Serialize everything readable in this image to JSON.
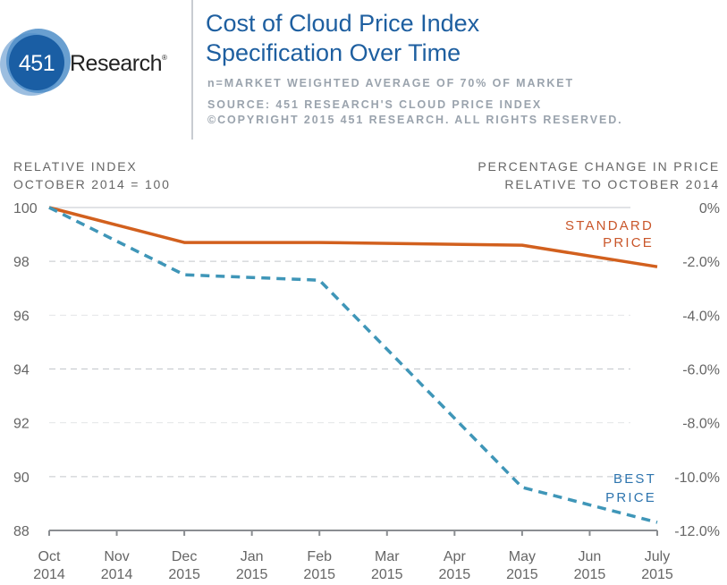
{
  "header": {
    "logo": {
      "number": "451",
      "word": "Research",
      "mark": "®"
    },
    "title_lines": [
      "Cost of Cloud Price Index",
      "Specification Over Time"
    ],
    "notes": [
      "n=MARKET WEIGHTED AVERAGE OF 70% OF MARKET",
      "SOURCE: 451 RESEARCH'S CLOUD PRICE INDEX",
      "©COPYRIGHT 2015 451 RESEARCH. ALL RIGHTS RESERVED."
    ]
  },
  "colors": {
    "standard": "#d2601e",
    "best": "#3f96b8",
    "title": "#1e5fa0",
    "standard_label": "#c9562a",
    "best_label": "#2d74ae"
  },
  "chart_data": {
    "type": "line",
    "title": "Cost of Cloud Price Index Specification Over Time",
    "ylabel_left": [
      "RELATIVE INDEX",
      "OCTOBER 2014 = 100"
    ],
    "ylabel_right": [
      "PERCENTAGE CHANGE IN PRICE",
      "RELATIVE TO OCTOBER 2014"
    ],
    "categories": [
      [
        "Oct",
        "2014"
      ],
      [
        "Nov",
        "2014"
      ],
      [
        "Dec",
        "2015"
      ],
      [
        "Jan",
        "2015"
      ],
      [
        "Feb",
        "2015"
      ],
      [
        "Mar",
        "2015"
      ],
      [
        "Apr",
        "2015"
      ],
      [
        "May",
        "2015"
      ],
      [
        "Jun",
        "2015"
      ],
      [
        "July",
        "2015"
      ]
    ],
    "ylim": [
      88,
      100
    ],
    "yticks_left": [
      "100",
      "98",
      "96",
      "94",
      "92",
      "90",
      "88"
    ],
    "yticks_right": [
      "0%",
      "-2.0%",
      "-4.0%",
      "-6.0%",
      "-8.0%",
      "-10.0%",
      "-12.0%"
    ],
    "grid": "horizontal-dashed",
    "series": [
      {
        "name": "STANDARD PRICE",
        "label_lines": [
          "STANDARD",
          "PRICE"
        ],
        "style": "solid",
        "points": [
          [
            0,
            100
          ],
          [
            2,
            98.7
          ],
          [
            4,
            98.7
          ],
          [
            7,
            98.6
          ],
          [
            9,
            97.8
          ]
        ]
      },
      {
        "name": "BEST PRICE",
        "label_lines": [
          "BEST",
          "PRICE"
        ],
        "style": "dashed",
        "points": [
          [
            0,
            100
          ],
          [
            2,
            97.5
          ],
          [
            4,
            97.3
          ],
          [
            7,
            89.6
          ],
          [
            9,
            88.3
          ]
        ]
      }
    ]
  }
}
